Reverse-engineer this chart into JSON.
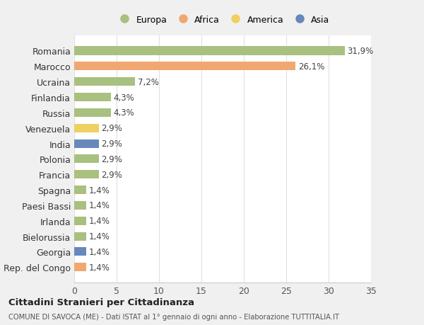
{
  "categories": [
    "Rep. del Congo",
    "Georgia",
    "Bielorussia",
    "Irlanda",
    "Paesi Bassi",
    "Spagna",
    "Francia",
    "Polonia",
    "India",
    "Venezuela",
    "Russia",
    "Finlandia",
    "Ucraina",
    "Marocco",
    "Romania"
  ],
  "values": [
    1.4,
    1.4,
    1.4,
    1.4,
    1.4,
    1.4,
    2.9,
    2.9,
    2.9,
    2.9,
    4.3,
    4.3,
    7.2,
    26.1,
    31.9
  ],
  "colors": [
    "#f0a870",
    "#6688bb",
    "#a8c080",
    "#a8c080",
    "#a8c080",
    "#a8c080",
    "#a8c080",
    "#a8c080",
    "#6688bb",
    "#f0d060",
    "#a8c080",
    "#a8c080",
    "#a8c080",
    "#f0a870",
    "#a8c080"
  ],
  "labels": [
    "1,4%",
    "1,4%",
    "1,4%",
    "1,4%",
    "1,4%",
    "1,4%",
    "2,9%",
    "2,9%",
    "2,9%",
    "2,9%",
    "4,3%",
    "4,3%",
    "7,2%",
    "26,1%",
    "31,9%"
  ],
  "title": "Cittadini Stranieri per Cittadinanza",
  "subtitle": "COMUNE DI SAVOCA (ME) - Dati ISTAT al 1° gennaio di ogni anno - Elaborazione TUTTITALIA.IT",
  "legend_labels": [
    "Europa",
    "Africa",
    "America",
    "Asia"
  ],
  "legend_colors": [
    "#a8c080",
    "#f0a870",
    "#f0d060",
    "#6688bb"
  ],
  "xlim": [
    0,
    35
  ],
  "xticks": [
    0,
    5,
    10,
    15,
    20,
    25,
    30,
    35
  ],
  "fig_bg": "#f0f0f0",
  "chart_bg": "#ffffff",
  "grid_color": "#e0e0e0",
  "label_fontsize": 8.5,
  "tick_fontsize": 9,
  "bar_height": 0.55
}
